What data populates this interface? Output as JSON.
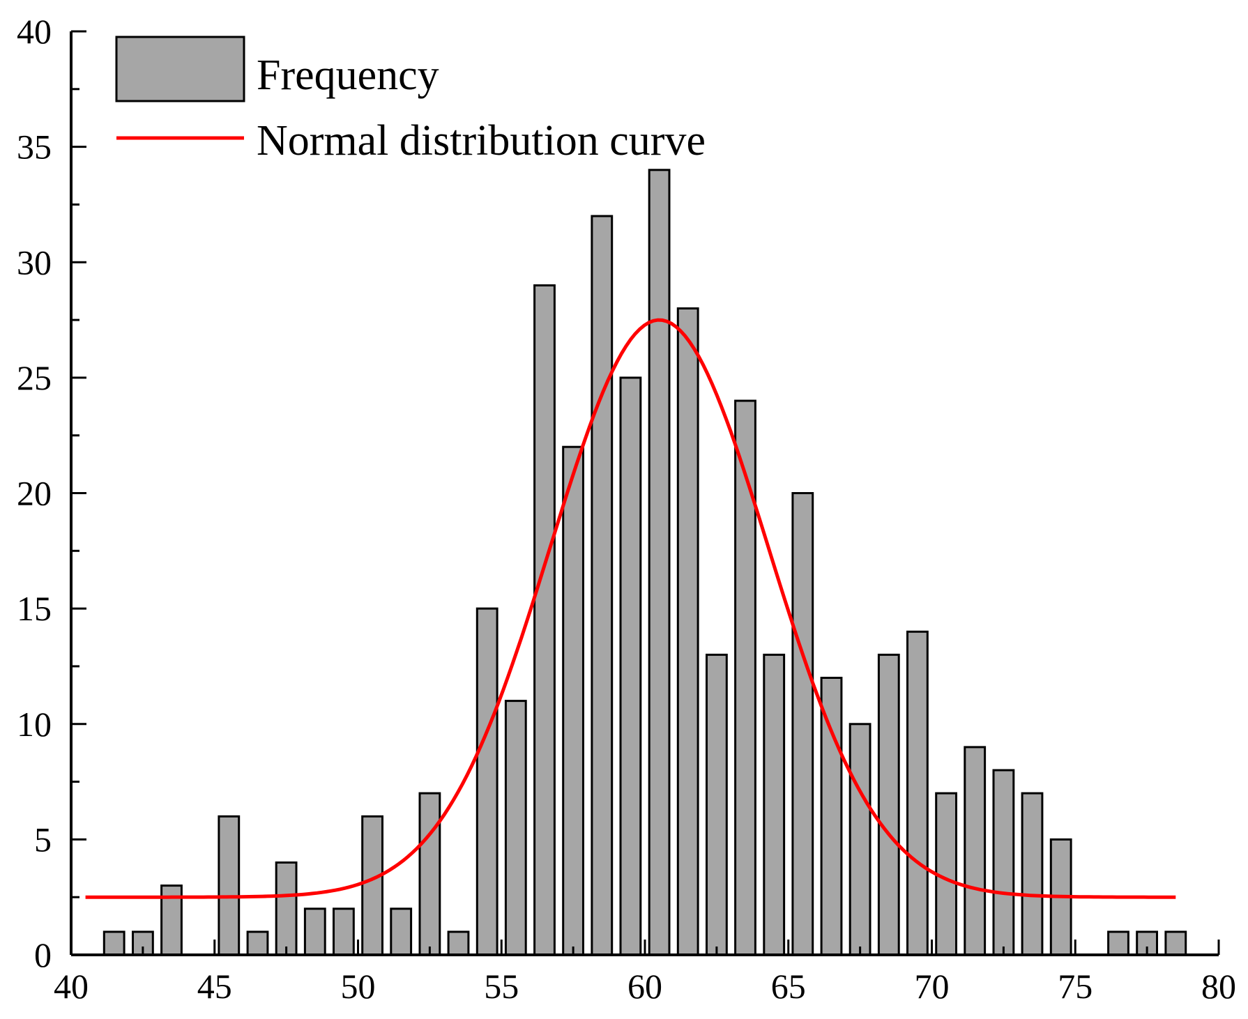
{
  "chart_data": {
    "type": "bar",
    "title": "",
    "xlabel": "",
    "ylabel": "",
    "xlim": [
      40,
      80
    ],
    "ylim": [
      0,
      40
    ],
    "x_ticks": [
      "40",
      "45",
      "50",
      "55",
      "60",
      "65",
      "70",
      "75",
      "80"
    ],
    "y_ticks": [
      "0",
      "5",
      "10",
      "15",
      "20",
      "25",
      "30",
      "35",
      "40"
    ],
    "bin_width": 0.7,
    "series": [
      {
        "name": "Frequency",
        "kind": "histogram",
        "color": "#a6a6a6",
        "bins": [
          {
            "x": 41.5,
            "value": 1
          },
          {
            "x": 42.5,
            "value": 1
          },
          {
            "x": 43.5,
            "value": 3
          },
          {
            "x": 45.5,
            "value": 6
          },
          {
            "x": 46.5,
            "value": 1
          },
          {
            "x": 47.5,
            "value": 4
          },
          {
            "x": 48.5,
            "value": 2
          },
          {
            "x": 49.5,
            "value": 2
          },
          {
            "x": 50.5,
            "value": 6
          },
          {
            "x": 51.5,
            "value": 2
          },
          {
            "x": 52.5,
            "value": 7
          },
          {
            "x": 53.5,
            "value": 1
          },
          {
            "x": 54.5,
            "value": 15
          },
          {
            "x": 55.5,
            "value": 11
          },
          {
            "x": 56.5,
            "value": 29
          },
          {
            "x": 57.5,
            "value": 22
          },
          {
            "x": 58.5,
            "value": 32
          },
          {
            "x": 59.5,
            "value": 25
          },
          {
            "x": 60.5,
            "value": 34
          },
          {
            "x": 61.5,
            "value": 28
          },
          {
            "x": 62.5,
            "value": 13
          },
          {
            "x": 63.5,
            "value": 24
          },
          {
            "x": 64.5,
            "value": 13
          },
          {
            "x": 65.5,
            "value": 20
          },
          {
            "x": 66.5,
            "value": 12
          },
          {
            "x": 67.5,
            "value": 10
          },
          {
            "x": 68.5,
            "value": 13
          },
          {
            "x": 69.5,
            "value": 14
          },
          {
            "x": 70.5,
            "value": 7
          },
          {
            "x": 71.5,
            "value": 9
          },
          {
            "x": 72.5,
            "value": 8
          },
          {
            "x": 73.5,
            "value": 7
          },
          {
            "x": 74.5,
            "value": 5
          },
          {
            "x": 76.5,
            "value": 1
          },
          {
            "x": 77.5,
            "value": 1
          },
          {
            "x": 78.5,
            "value": 1
          }
        ]
      },
      {
        "name": "Normal distribution curve",
        "kind": "line",
        "color": "#ff0000",
        "fit": {
          "baseline": 2.5,
          "amplitude": 25,
          "mean": 60.5,
          "sd": 3.8,
          "x_start": 40.5,
          "x_end": 78.5
        }
      }
    ],
    "legend": {
      "position": "top-left",
      "entries": [
        "Frequency",
        "Normal distribution curve"
      ]
    }
  }
}
